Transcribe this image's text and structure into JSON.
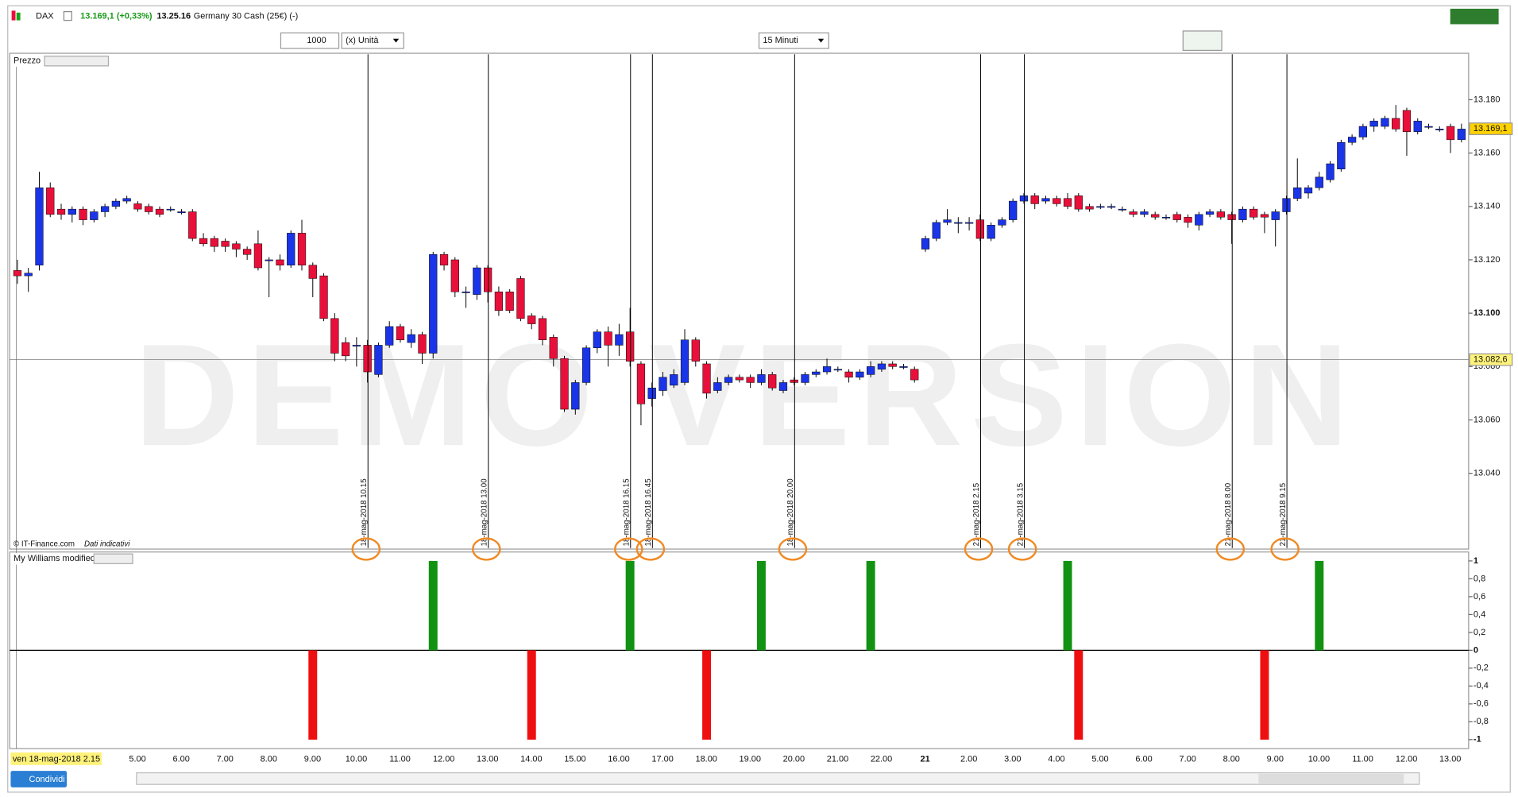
{
  "toolbar": {
    "symbol": "DAX",
    "price_change": "13.169,1 (+0,33%)",
    "time": "13.25.16",
    "instrument": "Germany 30 Cash (25€) (-)",
    "quantity": "1000",
    "unit": "(x) Unità",
    "timeframe": "15 Minuti"
  },
  "watermark": "DEMO VERSION",
  "footer": {
    "share_button": "Condividi"
  },
  "chart_data": [
    {
      "type": "candlestick",
      "title": "Prezzo",
      "source": "© IT-Finance.com",
      "note": "Dati indicativi",
      "colors": {
        "up": "#1a34e8",
        "down": "#e8103a"
      },
      "open": [
        13116,
        13114,
        13118,
        13147,
        13139,
        13137,
        13139,
        13135,
        13138,
        13140,
        13142,
        13141,
        13140,
        13139,
        13139,
        13138,
        13138,
        13128,
        13128,
        13127,
        13126,
        13124,
        13126,
        13120,
        13120,
        13118,
        13130,
        13118,
        13114,
        13098,
        13089,
        13088,
        13088,
        13077,
        13088,
        13095,
        13089,
        13092,
        13085,
        13122,
        13120,
        13108,
        13107,
        13117,
        13108,
        13108,
        13113,
        13099,
        13098,
        13091,
        13083,
        13064,
        13074,
        13087,
        13093,
        13088,
        13093,
        13081,
        13068,
        13071,
        13073,
        13074,
        13090,
        13081,
        13071,
        13074,
        13076,
        13076,
        13074,
        13077,
        13071,
        13075,
        13074,
        13077,
        13078,
        13079,
        13078,
        13076,
        13077,
        13079,
        13081,
        13080,
        13079,
        13124,
        13128,
        13134,
        13134,
        13134,
        13135,
        13128,
        13133,
        13135,
        13142,
        13144,
        13142,
        13143,
        13143,
        13144,
        13140,
        13140,
        13140,
        13139,
        13138,
        13137,
        13137,
        13136,
        13137,
        13136,
        13133,
        13137,
        13138,
        13137,
        13135,
        13139,
        13137,
        13135,
        13138,
        13143,
        13145,
        13147,
        13150,
        13154,
        13164,
        13166,
        13170,
        13170,
        13173,
        13176,
        13168,
        13170,
        13169,
        13170,
        13165
      ],
      "high": [
        13120,
        13117,
        13153,
        13149,
        13141,
        13140,
        13140,
        13139,
        13141,
        13143,
        13144,
        13142,
        13141,
        13140,
        13140,
        13139,
        13139,
        13130,
        13129,
        13128,
        13127,
        13125,
        13131,
        13121,
        13122,
        13131,
        13135,
        13119,
        13115,
        13100,
        13091,
        13091,
        13090,
        13089,
        13097,
        13096,
        13094,
        13093,
        13123,
        13123,
        13121,
        13110,
        13118,
        13118,
        13110,
        13109,
        13114,
        13100,
        13099,
        13092,
        13084,
        13075,
        13088,
        13094,
        13095,
        13096,
        13102,
        13082,
        13074,
        13078,
        13079,
        13094,
        13091,
        13082,
        13076,
        13077,
        13077,
        13077,
        13079,
        13078,
        13075,
        13076,
        13078,
        13079,
        13083,
        13080,
        13079,
        13079,
        13082,
        13082,
        13082,
        13081,
        13080,
        13129,
        13135,
        13139,
        13136,
        13136,
        13137,
        13134,
        13136,
        13143,
        13145,
        13145,
        13144,
        13144,
        13145,
        13145,
        13141,
        13141,
        13141,
        13140,
        13139,
        13139,
        13138,
        13137,
        13138,
        13137,
        13138,
        13139,
        13139,
        13138,
        13140,
        13140,
        13138,
        13139,
        13144,
        13158,
        13148,
        13153,
        13157,
        13165,
        13167,
        13171,
        13173,
        13174,
        13178,
        13177,
        13173,
        13171,
        13170,
        13171,
        13171
      ],
      "low": [
        13111,
        13108,
        13116,
        13136,
        13135,
        13134,
        13133,
        13134,
        13136,
        13139,
        13141,
        13138,
        13137,
        13136,
        13138,
        13137,
        13127,
        13125,
        13123,
        13123,
        13121,
        13120,
        13116,
        13106,
        13116,
        13117,
        13116,
        13106,
        13097,
        13082,
        13082,
        13080,
        13074,
        13076,
        13087,
        13089,
        13087,
        13081,
        13083,
        13116,
        13106,
        13102,
        13105,
        13104,
        13099,
        13100,
        13097,
        13094,
        13088,
        13080,
        13063,
        13062,
        13073,
        13085,
        13080,
        13084,
        13080,
        13058,
        13065,
        13069,
        13072,
        13073,
        13080,
        13068,
        13070,
        13073,
        13074,
        13072,
        13073,
        13071,
        13070,
        13073,
        13073,
        13076,
        13077,
        13078,
        13074,
        13075,
        13076,
        13078,
        13079,
        13079,
        13074,
        13123,
        13127,
        13133,
        13130,
        13131,
        13127,
        13127,
        13132,
        13134,
        13141,
        13139,
        13141,
        13140,
        13139,
        13138,
        13138,
        13139,
        13139,
        13138,
        13136,
        13136,
        13135,
        13135,
        13134,
        13132,
        13131,
        13136,
        13135,
        13126,
        13134,
        13135,
        13130,
        13125,
        13137,
        13142,
        13143,
        13146,
        13149,
        13153,
        13163,
        13165,
        13168,
        13169,
        13168,
        13159,
        13167,
        13169,
        13168,
        13160,
        13164
      ],
      "close": [
        13114,
        13115,
        13147,
        13137,
        13137,
        13139,
        13135,
        13138,
        13140,
        13142,
        13143,
        13139,
        13138,
        13137,
        13139,
        13138,
        13128,
        13126,
        13125,
        13125,
        13124,
        13122,
        13117,
        13120,
        13118,
        13130,
        13118,
        13113,
        13098,
        13085,
        13084,
        13088,
        13078,
        13088,
        13095,
        13090,
        13092,
        13085,
        13122,
        13118,
        13108,
        13108,
        13117,
        13108,
        13101,
        13101,
        13098,
        13096,
        13090,
        13083,
        13064,
        13074,
        13087,
        13093,
        13088,
        13092,
        13082,
        13066,
        13072,
        13076,
        13077,
        13090,
        13082,
        13070,
        13074,
        13076,
        13075,
        13074,
        13077,
        13072,
        13074,
        13074,
        13077,
        13078,
        13080,
        13079,
        13076,
        13078,
        13080,
        13081,
        13080,
        13080,
        13075,
        13128,
        13134,
        13135,
        13134,
        13134,
        13128,
        13133,
        13135,
        13142,
        13144,
        13141,
        13143,
        13141,
        13140,
        13139,
        13139,
        13140,
        13140,
        13139,
        13137,
        13138,
        13136,
        13136,
        13135,
        13134,
        13137,
        13138,
        13136,
        13135,
        13139,
        13136,
        13136,
        13138,
        13143,
        13147,
        13147,
        13151,
        13156,
        13164,
        13166,
        13170,
        13172,
        13173,
        13169,
        13168,
        13172,
        13170,
        13169,
        13165,
        13169
      ],
      "ylim": [
        13011.6,
        13197.4
      ],
      "yticks": [
        {
          "value": 13180,
          "label": "13.180"
        },
        {
          "value": 13160,
          "label": "13.160"
        },
        {
          "value": 13140,
          "label": "13.140"
        },
        {
          "value": 13120,
          "label": "13.120"
        },
        {
          "value": 13100,
          "label": "13.100"
        },
        {
          "value": 13080,
          "label": "13.080"
        },
        {
          "value": 13060,
          "label": "13.060"
        },
        {
          "value": 13040,
          "label": "13.040"
        }
      ],
      "last_price": {
        "value": 13169.1,
        "label": "13.169,1"
      },
      "crosshair_price": {
        "value": 13082.6,
        "label": "13.082,6"
      },
      "vertical_markers": [
        "18-mag-2018 10.15",
        "18-mag-2018 13.00",
        "18-mag-2018 16.15",
        "18-mag-2018 16.45",
        "18-mag-2018 20.00",
        "21-mag-2018 2.15",
        "21-mag-2018 3.15",
        "21-mag-2018 8.00",
        "21-mag-2018 9.15"
      ],
      "x_labels": [
        "ven 18-mag-2018 2.15",
        "5.00",
        "6.00",
        "7.00",
        "8.00",
        "9.00",
        "10.00",
        "11.00",
        "12.00",
        "13.00",
        "14.00",
        "15.00",
        "16.00",
        "17.00",
        "18.00",
        "19.00",
        "20.00",
        "21.00",
        "22.00",
        "21",
        "2.00",
        "3.00",
        "4.00",
        "5.00",
        "6.00",
        "7.00",
        "8.00",
        "9.00",
        "10.00",
        "11.00",
        "12.00",
        "13.00"
      ]
    },
    {
      "type": "bar",
      "title": "My Williams modified",
      "colors": {
        "up": "#129212",
        "down": "#ee1010"
      },
      "values": [
        0,
        0,
        0,
        0,
        0,
        0,
        0,
        0,
        0,
        0,
        0,
        0,
        0,
        0,
        0,
        0,
        0,
        0,
        0,
        0,
        0,
        0,
        0,
        0,
        0,
        0,
        0,
        -1,
        0,
        0,
        0,
        0,
        0,
        0,
        0,
        0,
        0,
        0,
        1,
        0,
        0,
        0,
        0,
        0,
        0,
        0,
        0,
        -1,
        0,
        0,
        0,
        0,
        0,
        0,
        0,
        0,
        1,
        0,
        0,
        0,
        0,
        0,
        0,
        -1,
        0,
        0,
        0,
        0,
        1,
        0,
        0,
        0,
        0,
        0,
        0,
        0,
        0,
        0,
        1,
        0,
        0,
        0,
        0,
        0,
        0,
        0,
        0,
        0,
        0,
        0,
        0,
        0,
        0,
        0,
        0,
        0,
        1,
        -1,
        0,
        0,
        0,
        0,
        0,
        0,
        0,
        0,
        0,
        0,
        0,
        0,
        0,
        0,
        0,
        0,
        -1,
        0,
        0,
        0,
        0,
        1,
        0,
        0,
        0,
        0,
        0,
        0,
        0,
        0,
        0,
        0,
        0,
        0,
        0
      ],
      "ylim": [
        -1.1,
        1.1
      ],
      "yticks": [
        1,
        {
          "value": 0.8,
          "label": "0,8"
        },
        {
          "value": 0.6,
          "label": "0,6"
        },
        {
          "value": 0.4,
          "label": "0,4"
        },
        {
          "value": 0.2,
          "label": "0,2"
        },
        0,
        {
          "value": -0.2,
          "label": "-0,2"
        },
        {
          "value": -0.4,
          "label": "-0,4"
        },
        {
          "value": -0.6,
          "label": "-0,6"
        },
        {
          "value": -0.8,
          "label": "-0,8"
        },
        -1
      ]
    }
  ]
}
